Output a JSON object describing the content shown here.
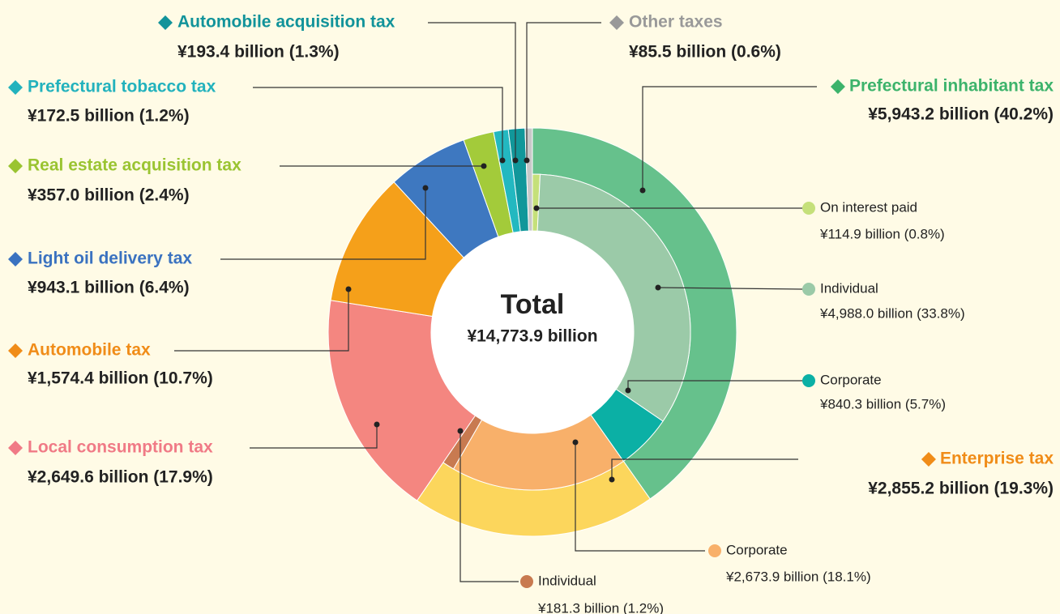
{
  "chart_data": {
    "type": "sunburst",
    "center_title": "Total",
    "center_label": "¥14,773.9 billion",
    "slices": [
      {
        "name": "Prefectural inhabitant tax",
        "value": 5943.2,
        "value_label": "¥5,943.2 billion (40.2%)",
        "color": "#66c18c",
        "label_color": "#3cb36b",
        "children": [
          {
            "name": "On interest paid",
            "value": 114.9,
            "value_label": "¥114.9 billion (0.8%)",
            "color": "#c5e07a"
          },
          {
            "name": "Individual",
            "value": 4988.0,
            "value_label": "¥4,988.0 billion (33.8%)",
            "color": "#9bcaa8"
          },
          {
            "name": "Corporate",
            "value": 840.3,
            "value_label": "¥840.3 billion (5.7%)",
            "color": "#0bb0a5"
          }
        ]
      },
      {
        "name": "Enterprise tax",
        "value": 2855.2,
        "value_label": "¥2,855.2 billion (19.3%)",
        "color": "#fcd65c",
        "label_color": "#f08c18",
        "children": [
          {
            "name": "Corporate",
            "value": 2673.9,
            "value_label": "¥2,673.9 billion (18.1%)",
            "color": "#f8b06a"
          },
          {
            "name": "Individual",
            "value": 181.3,
            "value_label": "¥181.3 billion (1.2%)",
            "color": "#c87a50"
          }
        ]
      },
      {
        "name": "Local consumption tax",
        "value": 2649.6,
        "value_label": "¥2,649.6 billion (17.9%)",
        "color": "#f48680",
        "label_color": "#f07a86"
      },
      {
        "name": "Automobile tax",
        "value": 1574.4,
        "value_label": "¥1,574.4 billion (10.7%)",
        "color": "#f5a01a",
        "label_color": "#f08c18"
      },
      {
        "name": "Light oil delivery tax",
        "value": 943.1,
        "value_label": "¥943.1 billion (6.4%)",
        "color": "#3e78c0",
        "label_color": "#3a72c0"
      },
      {
        "name": "Real estate acquisition tax",
        "value": 357.0,
        "value_label": "¥357.0 billion (2.4%)",
        "color": "#a3cb3a",
        "label_color": "#9ac431"
      },
      {
        "name": "Prefectural tobacco tax",
        "value": 172.5,
        "value_label": "¥172.5 billion (1.2%)",
        "color": "#23b8c0",
        "label_color": "#22b2bd"
      },
      {
        "name": "Automobile acquisition tax",
        "value": 193.4,
        "value_label": "¥193.4 billion (1.3%)",
        "color": "#11979a",
        "label_color": "#11939a"
      },
      {
        "name": "Other taxes",
        "value": 85.5,
        "value_label": "¥85.5 billion (0.6%)",
        "color": "#c8c8c8",
        "label_color": "#999999"
      }
    ]
  }
}
